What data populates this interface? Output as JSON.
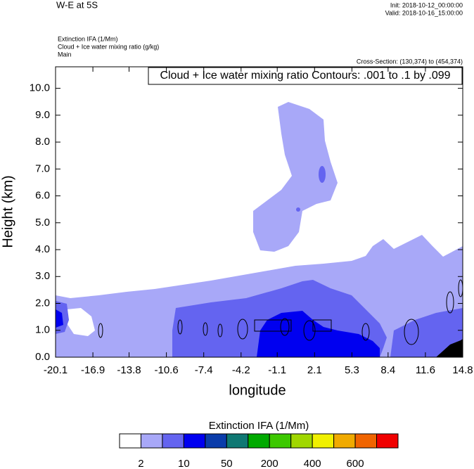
{
  "chart_data": {
    "type": "contour",
    "title": "W-E at 5S",
    "init": "Init: 2018-10-12_00:00:00",
    "valid": "Valid: 2018-10-16_15:00:00",
    "fields": [
      "Extinction IFA   (1/Mm)",
      "Cloud + Ice water mixing ratio   (g/kg)",
      "Main"
    ],
    "cross_section": "Cross-Section: (130,374) to (454,374)",
    "contour_label": "Cloud + Ice water mixing ratio Contours: .001 to .1 by .099",
    "xlabel": "longitude",
    "ylabel": "Height (km)",
    "xlim": [
      -20.1,
      14.8
    ],
    "xticks": [
      -20.1,
      -16.9,
      -13.8,
      -10.6,
      -7.4,
      -4.2,
      -1.1,
      2.1,
      5.3,
      8.4,
      11.6,
      14.8
    ],
    "ylim": [
      0,
      10.8
    ],
    "yticks": [
      {
        "value": 0,
        "label": "0.0"
      },
      {
        "value": 1,
        "label": "1.0"
      },
      {
        "value": 2,
        "label": "2.0"
      },
      {
        "value": 3,
        "label": "3.0"
      },
      {
        "value": 4,
        "label": "4.0"
      },
      {
        "value": 5,
        "label": "5.0"
      },
      {
        "value": 6,
        "label": "6.0"
      },
      {
        "value": 7,
        "label": "7.0"
      },
      {
        "value": 8,
        "label": "8.0"
      },
      {
        "value": 9,
        "label": "9.0"
      },
      {
        "value": 10,
        "label": "10.0"
      }
    ],
    "colorbar": {
      "title": "Extinction IFA  (1/Mm)",
      "colors": [
        "#ffffff",
        "#a8a8f8",
        "#6464f0",
        "#0000f0",
        "#0a3caa",
        "#0f7873",
        "#00aa00",
        "#3cc800",
        "#a0d700",
        "#f0f000",
        "#f0aa00",
        "#f06400",
        "#f00000"
      ],
      "labels": [
        2,
        10,
        50,
        200,
        400,
        600
      ]
    }
  }
}
